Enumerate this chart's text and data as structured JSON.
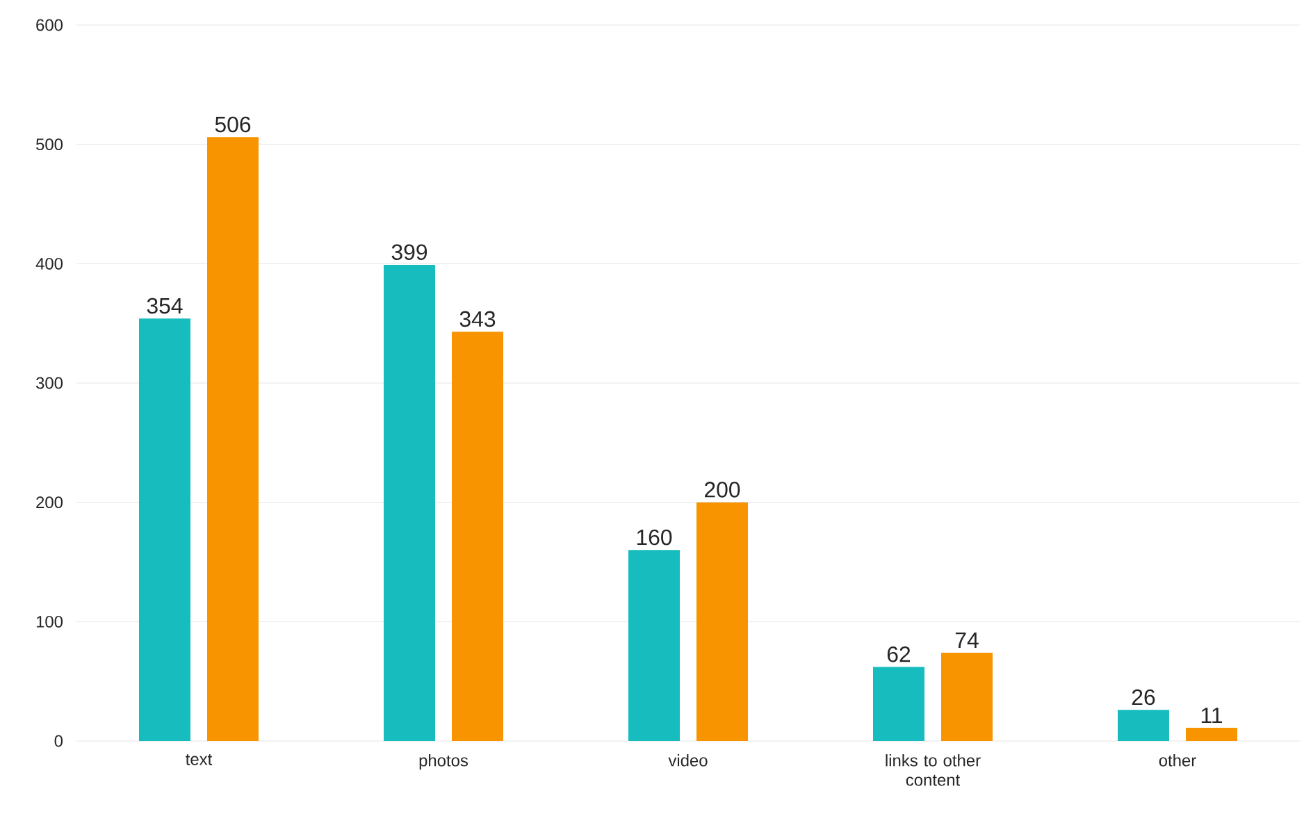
{
  "chart_data": {
    "type": "bar",
    "categories": [
      "text",
      "photos",
      "video",
      "links to other content",
      "other"
    ],
    "series": [
      {
        "color": "#17bcbf",
        "values": [
          354,
          399,
          160,
          62,
          26
        ]
      },
      {
        "color": "#f79400",
        "values": [
          506,
          343,
          200,
          74,
          11
        ]
      }
    ],
    "ylim": [
      0,
      600
    ],
    "yticks": [
      0,
      100,
      200,
      300,
      400,
      500,
      600
    ],
    "grid": "y",
    "data_labels": true
  }
}
